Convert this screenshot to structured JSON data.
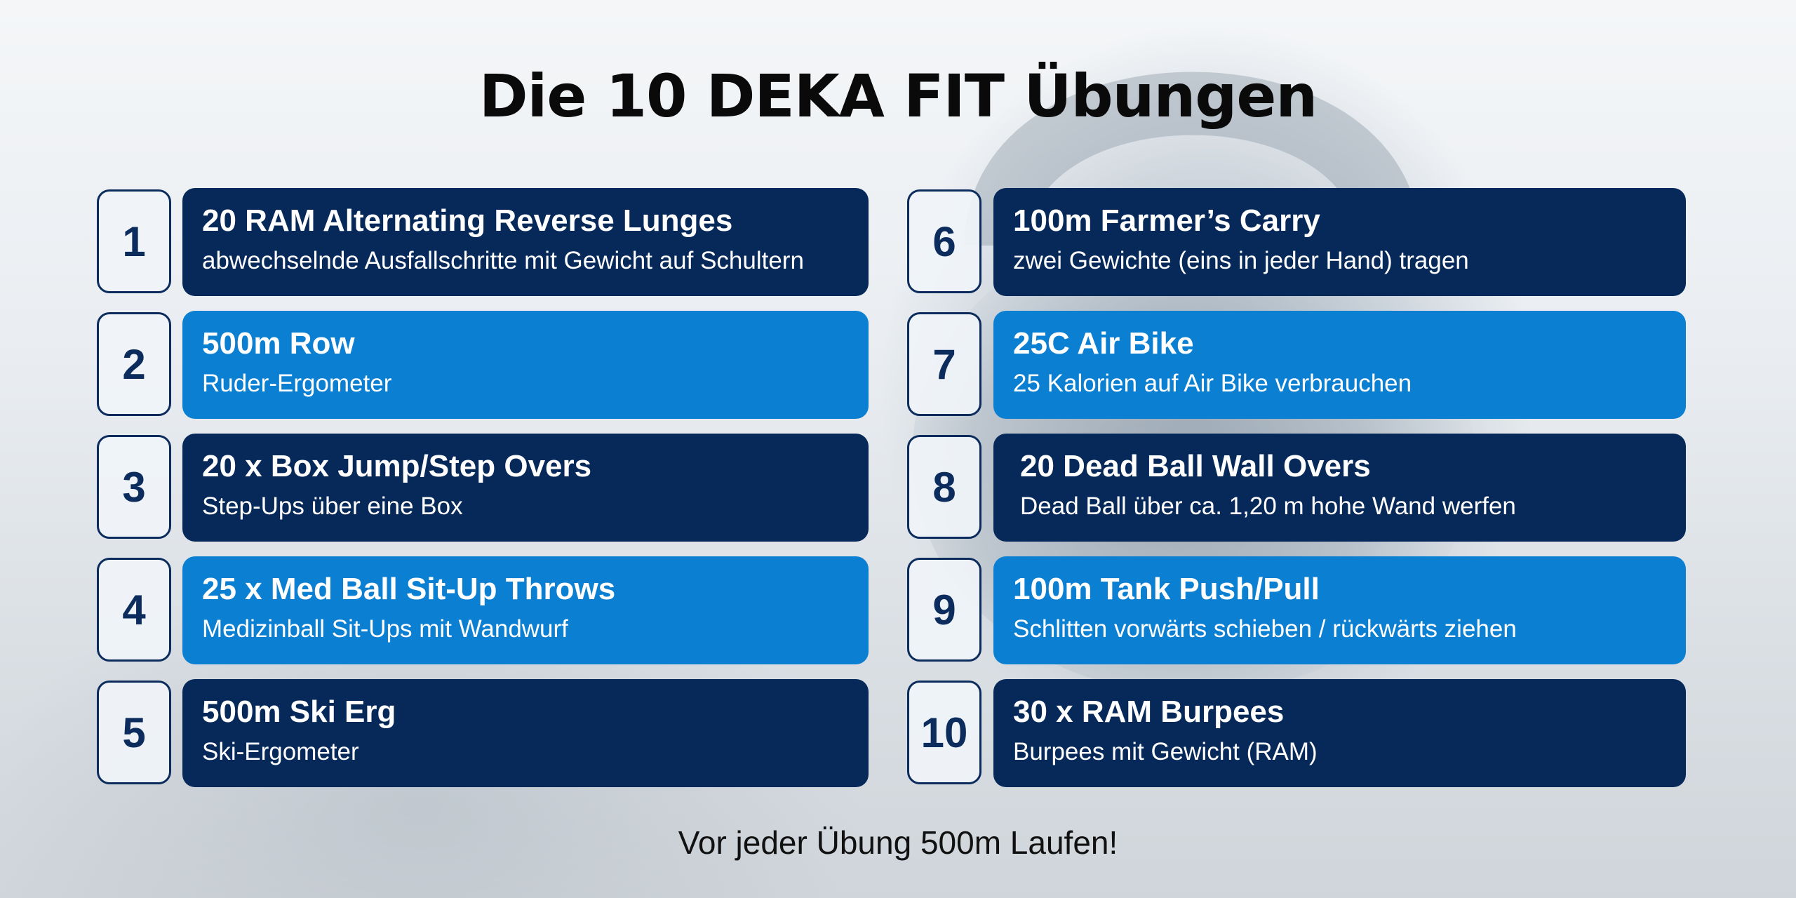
{
  "title": "Die 10 DEKA FIT Übungen",
  "footer": "Vor jeder Übung 500m Laufen!",
  "colors": {
    "dark_card": "#06295a",
    "light_card": "#0b7fd1",
    "number_border": "#0b2c5c"
  },
  "exercises": [
    {
      "number": "1",
      "title": "20 RAM Alternating Reverse Lunges",
      "subtitle": "abwechselnde Ausfallschritte mit Gewicht auf Schultern",
      "style": "dark"
    },
    {
      "number": "2",
      "title": "500m Row",
      "subtitle": "Ruder-Ergometer",
      "style": "light"
    },
    {
      "number": "3",
      "title": "20 x Box Jump/Step Overs",
      "subtitle": "Step-Ups über eine Box",
      "style": "dark"
    },
    {
      "number": "4",
      "title": "25 x Med Ball Sit-Up Throws",
      "subtitle": "Medizinball Sit-Ups mit Wandwurf",
      "style": "light"
    },
    {
      "number": "5",
      "title": "500m Ski Erg",
      "subtitle": "Ski-Ergometer",
      "style": "dark"
    },
    {
      "number": "6",
      "title": "100m Farmer’s Carry",
      "subtitle": "zwei Gewichte (eins in jeder Hand) tragen",
      "style": "dark"
    },
    {
      "number": "7",
      "title": "25C Air Bike",
      "subtitle": "25 Kalorien auf Air Bike verbrauchen",
      "style": "light"
    },
    {
      "number": "8",
      "title": "20 Dead Ball Wall Overs",
      "subtitle": "Dead Ball über ca. 1,20 m hohe Wand werfen",
      "style": "dark"
    },
    {
      "number": "9",
      "title": "100m Tank Push/Pull",
      "subtitle": "Schlitten vorwärts schieben / rückwärts ziehen",
      "style": "light"
    },
    {
      "number": "10",
      "title": "30 x RAM Burpees",
      "subtitle": "Burpees mit Gewicht (RAM)",
      "style": "dark"
    }
  ]
}
